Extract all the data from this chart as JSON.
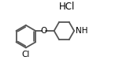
{
  "hcl_text": "HCl",
  "o_text": "O",
  "cl_text": "Cl",
  "nh_text": "NH",
  "line_color": "#555555",
  "bg_color": "#ffffff",
  "text_color": "#000000",
  "line_width": 1.3,
  "font_size": 7.0,
  "hcl_font_size": 8.5
}
